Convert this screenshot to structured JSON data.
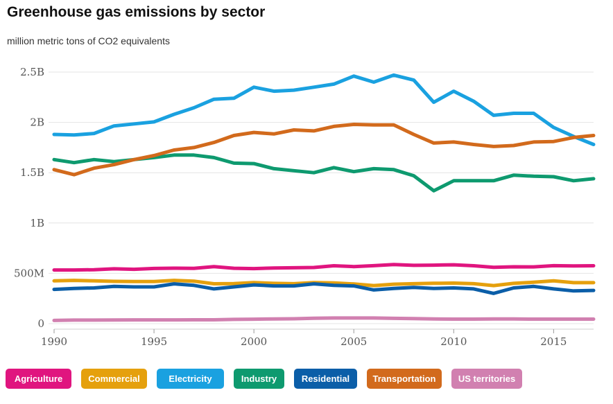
{
  "title": "Greenhouse gas emissions by sector",
  "subtitle": "million metric tons of CO2 equivalents",
  "chart_data": {
    "type": "line",
    "x": [
      1990,
      1991,
      1992,
      1993,
      1994,
      1995,
      1996,
      1997,
      1998,
      1999,
      2000,
      2001,
      2002,
      2003,
      2004,
      2005,
      2006,
      2007,
      2008,
      2009,
      2010,
      2011,
      2012,
      2013,
      2014,
      2015,
      2016,
      2017
    ],
    "ylim": [
      0,
      2500
    ],
    "xlim": [
      1990,
      2017
    ],
    "yticks": [
      0,
      500,
      1000,
      1500,
      2000,
      2500
    ],
    "ytick_labels": [
      "0",
      "500M",
      "1B",
      "1.5B",
      "2B",
      "2.5B"
    ],
    "xticks": [
      1990,
      1995,
      2000,
      2005,
      2010,
      2015
    ],
    "xtick_labels": [
      "1990",
      "1995",
      "2000",
      "2005",
      "2010",
      "2015"
    ],
    "grid": true,
    "legend_position": "bottom",
    "series": [
      {
        "name": "Agriculture",
        "color": "#e0157f",
        "values": [
          533,
          533,
          536,
          545,
          540,
          548,
          551,
          549,
          566,
          550,
          547,
          553,
          555,
          558,
          575,
          567,
          576,
          587,
          579,
          581,
          585,
          575,
          560,
          565,
          564,
          576,
          574,
          575
        ]
      },
      {
        "name": "Commercial",
        "color": "#e5a00d",
        "values": [
          425,
          430,
          425,
          420,
          418,
          419,
          430,
          422,
          396,
          398,
          408,
          400,
          397,
          408,
          405,
          394,
          378,
          392,
          397,
          401,
          403,
          397,
          378,
          400,
          411,
          425,
          407,
          407
        ]
      },
      {
        "name": "Electricity",
        "color": "#1aa1e0",
        "values": [
          1880,
          1875,
          1890,
          1965,
          1985,
          2005,
          2080,
          2145,
          2230,
          2240,
          2350,
          2310,
          2320,
          2350,
          2380,
          2460,
          2400,
          2470,
          2420,
          2200,
          2310,
          2210,
          2070,
          2090,
          2090,
          1950,
          1860,
          1780
        ]
      },
      {
        "name": "Industry",
        "color": "#0e9a6f",
        "values": [
          1630,
          1600,
          1630,
          1610,
          1630,
          1650,
          1675,
          1675,
          1650,
          1595,
          1590,
          1540,
          1520,
          1500,
          1550,
          1510,
          1540,
          1530,
          1470,
          1320,
          1420,
          1420,
          1420,
          1475,
          1465,
          1460,
          1420,
          1440
        ]
      },
      {
        "name": "Residential",
        "color": "#0b5ea8",
        "values": [
          340,
          350,
          355,
          370,
          365,
          365,
          395,
          380,
          345,
          365,
          385,
          375,
          375,
          395,
          380,
          375,
          335,
          350,
          360,
          350,
          355,
          345,
          300,
          355,
          370,
          345,
          325,
          330
        ]
      },
      {
        "name": "Transportation",
        "color": "#d26a1c",
        "values": [
          1530,
          1480,
          1545,
          1580,
          1630,
          1670,
          1725,
          1750,
          1800,
          1870,
          1900,
          1885,
          1925,
          1915,
          1960,
          1980,
          1975,
          1975,
          1880,
          1795,
          1805,
          1780,
          1760,
          1770,
          1805,
          1810,
          1850,
          1870
        ]
      },
      {
        "name": "US territories",
        "color": "#d180b0",
        "values": [
          32,
          35,
          35,
          36,
          37,
          37,
          37,
          38,
          38,
          42,
          44,
          47,
          48,
          53,
          56,
          56,
          56,
          52,
          50,
          46,
          45,
          45,
          46,
          46,
          45,
          45,
          45,
          45
        ]
      }
    ]
  }
}
